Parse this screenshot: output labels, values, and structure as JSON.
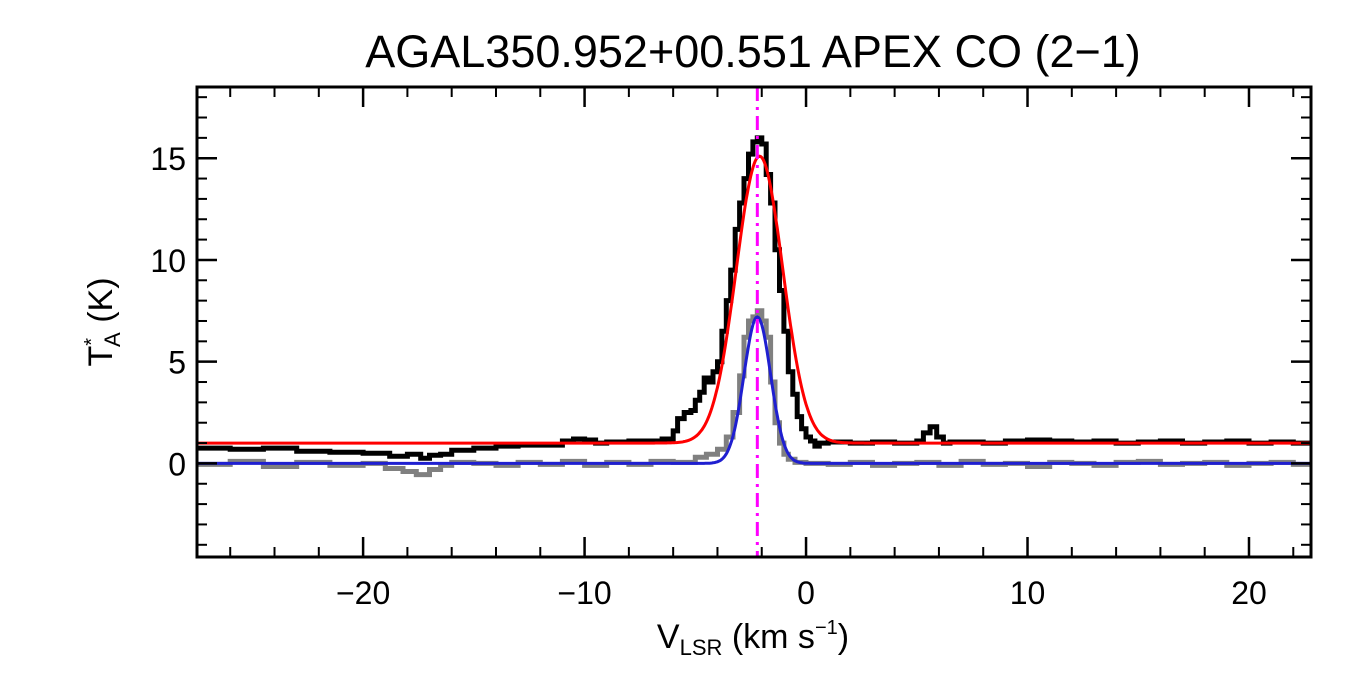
{
  "chart_data": {
    "type": "line",
    "title": "AGAL350.952+00.551   APEX CO (2−1)",
    "xlabel": {
      "main": "V",
      "sub": "LSR",
      "unit_pre": " (km s",
      "sup": "−1",
      "unit_post": ")"
    },
    "ylabel": {
      "main": "T",
      "sup": "*",
      "sub": "A",
      "unit": " (K)"
    },
    "xlim": [
      -27.5,
      22.8
    ],
    "ylim": [
      -4.6,
      18.5
    ],
    "xticks": [
      -20,
      -10,
      0,
      10,
      20
    ],
    "xtick_labels": [
      "−20",
      "−10",
      "0",
      "10",
      "20"
    ],
    "yticks": [
      0,
      5,
      10,
      15
    ],
    "ytick_labels": [
      "0",
      "5",
      "10",
      "15"
    ],
    "grid": false,
    "reference_velocity": -2.2,
    "series": [
      {
        "color": "#000000",
        "style": "step",
        "x": [
          -27.5,
          -26.0,
          -24.5,
          -23.0,
          -21.5,
          -20.0,
          -18.8,
          -18.0,
          -17.4,
          -17.0,
          -16.5,
          -16.0,
          -15.0,
          -14.0,
          -13.0,
          -12.0,
          -11.0,
          -10.5,
          -10.0,
          -9.5,
          -9.0,
          -8.0,
          -7.0,
          -6.5,
          -6.0,
          -5.8,
          -5.5,
          -5.2,
          -5.0,
          -4.8,
          -4.6,
          -4.4,
          -4.2,
          -4.0,
          -3.8,
          -3.6,
          -3.4,
          -3.2,
          -3.0,
          -2.8,
          -2.6,
          -2.4,
          -2.2,
          -2.0,
          -1.8,
          -1.6,
          -1.4,
          -1.2,
          -1.0,
          -0.8,
          -0.6,
          -0.4,
          -0.2,
          0.0,
          0.2,
          0.4,
          0.6,
          1.0,
          2.0,
          3.0,
          4.0,
          5.0,
          5.3,
          5.6,
          5.9,
          6.2,
          6.5,
          7.0,
          8.0,
          9.0,
          10.0,
          11.0,
          12.0,
          13.0,
          14.0,
          15.0,
          16.0,
          17.0,
          18.0,
          19.0,
          20.0,
          21.0,
          22.0,
          22.8
        ],
        "y": [
          0.75,
          0.7,
          0.75,
          0.6,
          0.55,
          0.5,
          0.35,
          0.45,
          0.25,
          0.4,
          0.45,
          0.65,
          0.75,
          0.85,
          0.9,
          0.9,
          1.1,
          1.2,
          1.15,
          1.0,
          1.05,
          1.1,
          1.1,
          1.2,
          1.6,
          2.2,
          2.5,
          2.6,
          3.1,
          3.5,
          4.2,
          4.0,
          4.5,
          5.0,
          6.5,
          8.0,
          9.5,
          11.5,
          12.8,
          14.0,
          15.2,
          15.8,
          16.0,
          15.7,
          14.2,
          12.8,
          10.5,
          8.5,
          6.5,
          4.5,
          3.4,
          2.3,
          1.7,
          1.3,
          1.1,
          0.85,
          1.0,
          1.05,
          1.0,
          1.05,
          1.0,
          1.1,
          1.5,
          1.8,
          1.3,
          1.0,
          1.05,
          1.05,
          1.0,
          1.1,
          1.15,
          1.1,
          1.05,
          1.1,
          1.0,
          1.05,
          1.1,
          1.0,
          1.05,
          1.1,
          1.0,
          1.05,
          1.0,
          1.0
        ]
      },
      {
        "color": "#808080",
        "style": "step",
        "x": [
          -27.5,
          -26.0,
          -24.5,
          -23.0,
          -21.5,
          -20.0,
          -19.0,
          -18.2,
          -17.6,
          -17.0,
          -16.5,
          -16.0,
          -15.0,
          -14.0,
          -13.0,
          -12.0,
          -11.0,
          -10.0,
          -9.0,
          -8.0,
          -7.0,
          -6.0,
          -5.0,
          -4.5,
          -4.0,
          -3.6,
          -3.3,
          -3.0,
          -2.8,
          -2.6,
          -2.4,
          -2.2,
          -2.0,
          -1.8,
          -1.6,
          -1.4,
          -1.2,
          -1.0,
          -0.8,
          -0.5,
          0.0,
          1.0,
          2.0,
          3.0,
          4.0,
          5.0,
          6.0,
          7.0,
          8.0,
          9.0,
          10.0,
          11.0,
          12.0,
          13.0,
          14.0,
          15.0,
          16.0,
          17.0,
          18.0,
          19.0,
          20.0,
          21.0,
          22.0,
          22.8
        ],
        "y": [
          -0.05,
          0.1,
          -0.15,
          0.05,
          -0.1,
          0.0,
          -0.25,
          -0.4,
          -0.55,
          -0.3,
          -0.1,
          0.05,
          0.0,
          -0.1,
          0.05,
          -0.05,
          0.1,
          -0.1,
          0.05,
          -0.05,
          0.1,
          0.05,
          0.3,
          0.45,
          0.7,
          1.3,
          2.5,
          4.3,
          6.2,
          7.0,
          7.2,
          7.5,
          7.0,
          6.2,
          4.0,
          2.0,
          1.0,
          0.45,
          0.2,
          0.05,
          0.0,
          -0.05,
          0.05,
          -0.1,
          0.0,
          0.05,
          -0.1,
          0.1,
          -0.05,
          0.0,
          -0.15,
          0.05,
          0.0,
          -0.1,
          0.05,
          0.1,
          -0.05,
          0.0,
          0.05,
          -0.1,
          0.0,
          0.05,
          -0.05,
          0.0
        ]
      },
      {
        "color": "#ff0000",
        "style": "gaussian",
        "baseline": 1.0,
        "amplitude": 14.1,
        "center": -2.1,
        "sigma": 1.05
      },
      {
        "color": "#1f1fd0",
        "style": "gaussian",
        "baseline": 0.0,
        "amplitude": 7.2,
        "center": -2.2,
        "sigma": 0.6
      }
    ]
  }
}
